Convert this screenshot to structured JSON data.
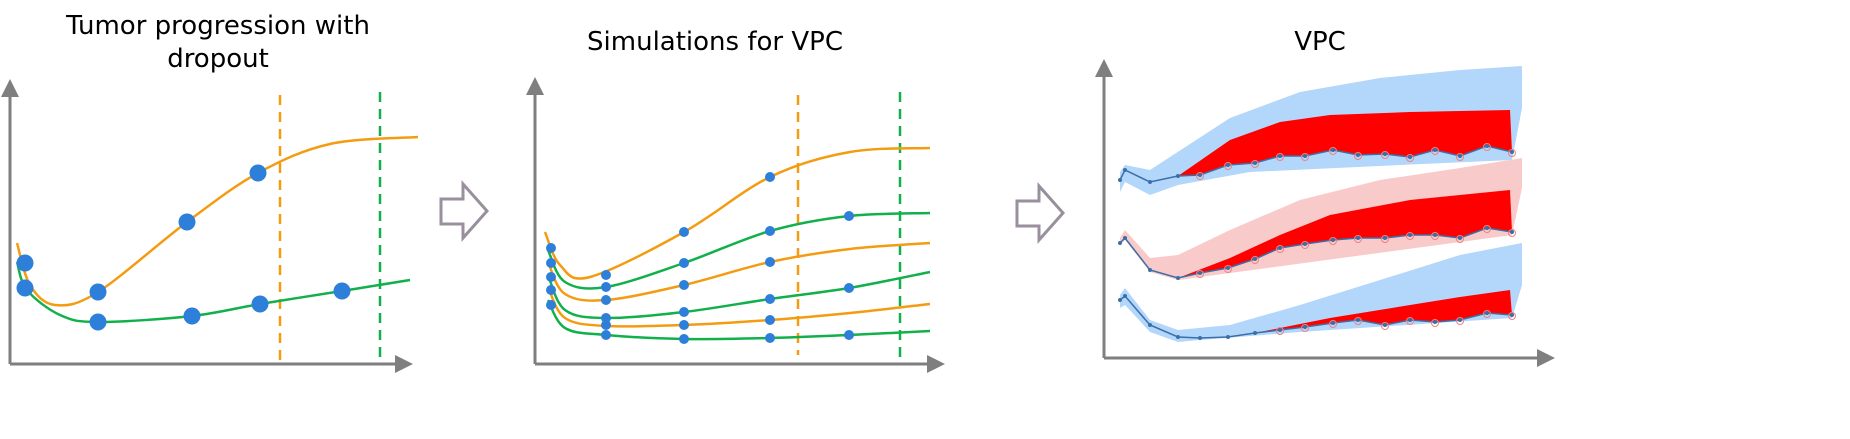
{
  "panels": [
    {
      "title_line1": "Tumor progression with",
      "title_line2": "dropout"
    },
    {
      "title": "Simulations for VPC"
    },
    {
      "title": "VPC"
    }
  ],
  "colors": {
    "axis": "#7f7f7f",
    "orange": "#f39c12",
    "green": "#12b04a",
    "dot": "#2e7fd9",
    "arrow": "#9a8f9c",
    "band_blue": "#b3d6fb",
    "band_pink": "#f9caca",
    "red": "#ff0000",
    "median_line": "#3a6fa8"
  }
}
